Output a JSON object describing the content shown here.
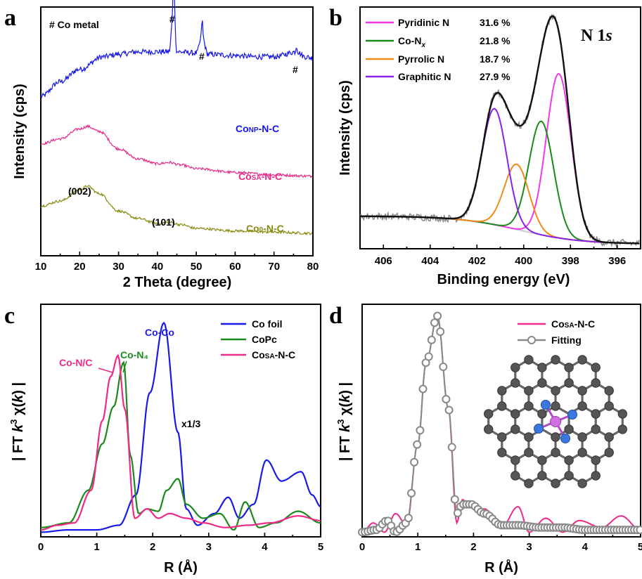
{
  "chart_data": [
    {
      "panel": "a",
      "type": "line",
      "xlabel": "2 Theta (degree)",
      "ylabel": "Intensity (cps)",
      "xlim": [
        10,
        80
      ],
      "xticks": [
        "10",
        "20",
        "30",
        "40",
        "50",
        "60",
        "70",
        "80"
      ],
      "annotations": [
        "# Co metal",
        "#",
        "#",
        "#",
        "(002)",
        "(101)"
      ],
      "series": [
        {
          "name": "CoNP-N-C",
          "color": "#1515ee",
          "x": [
            10,
            15,
            20,
            26,
            30,
            35,
            40,
            43,
            44.2,
            45,
            50,
            51.5,
            53,
            60,
            65,
            70,
            75.8,
            78,
            80
          ],
          "y": [
            0.64,
            0.7,
            0.75,
            0.8,
            0.81,
            0.82,
            0.82,
            0.82,
            1.0,
            0.82,
            0.815,
            0.88,
            0.81,
            0.805,
            0.8,
            0.8,
            0.82,
            0.8,
            0.795
          ]
        },
        {
          "name": "CoSA-N-C",
          "color": "#e8298a",
          "x": [
            10,
            15,
            20,
            22,
            25,
            30,
            35,
            40,
            43,
            46,
            50,
            60,
            70,
            80
          ],
          "y": [
            0.45,
            0.47,
            0.51,
            0.52,
            0.5,
            0.43,
            0.39,
            0.37,
            0.375,
            0.365,
            0.35,
            0.335,
            0.325,
            0.32
          ]
        },
        {
          "name": "Co0-N-C",
          "color": "#8a8a10",
          "x": [
            10,
            15,
            20,
            22,
            25,
            30,
            35,
            40,
            43,
            46,
            50,
            60,
            70,
            80
          ],
          "y": [
            0.2,
            0.22,
            0.265,
            0.28,
            0.25,
            0.18,
            0.15,
            0.13,
            0.135,
            0.125,
            0.11,
            0.1,
            0.095,
            0.09
          ]
        }
      ]
    },
    {
      "panel": "b",
      "type": "line",
      "title": "N 1s",
      "xlabel": "Binding energy (eV)",
      "ylabel": "Intensity (cps)",
      "xlim": [
        407,
        395
      ],
      "xticks": [
        "406",
        "404",
        "402",
        "400",
        "398",
        "396"
      ],
      "series": [
        {
          "name": "Pyridinic N",
          "color": "#f039ea",
          "percent": "31.6 %",
          "center": 398.5,
          "height": 0.68
        },
        {
          "name": "Co-Nx",
          "color": "#1a8a1a",
          "percent": "21.8 %",
          "center": 399.25,
          "height": 0.47
        },
        {
          "name": "Pyrrolic N",
          "color": "#f08a1a",
          "percent": "18.7 %",
          "center": 400.3,
          "height": 0.27
        },
        {
          "name": "Graphitic N",
          "color": "#8a20ea",
          "percent": "27.9 %",
          "center": 401.25,
          "height": 0.48
        }
      ]
    },
    {
      "panel": "c",
      "type": "line",
      "xlabel": "R (Å)",
      "ylabel": "| FT k3 χ(k) |",
      "xlim": [
        0,
        5
      ],
      "xticks": [
        "0",
        "1",
        "2",
        "3",
        "4",
        "5"
      ],
      "annotations": [
        "Co-Co",
        "Co-N/C",
        "Co-N₄",
        "x1/3"
      ],
      "series": [
        {
          "name": "Co foil",
          "color": "#1a1ae8",
          "x": [
            0,
            0.5,
            1.0,
            1.4,
            1.7,
            1.95,
            2.2,
            2.45,
            2.6,
            2.8,
            3.1,
            3.35,
            3.55,
            3.8,
            4.03,
            4.3,
            4.65,
            4.85,
            5.0
          ],
          "y": [
            0.02,
            0.03,
            0.03,
            0.05,
            0.18,
            0.62,
            0.92,
            0.45,
            0.12,
            0.05,
            0.1,
            0.17,
            0.08,
            0.14,
            0.33,
            0.24,
            0.28,
            0.18,
            0.13
          ]
        },
        {
          "name": "CoPc",
          "color": "#1a8a1a",
          "x": [
            0,
            0.5,
            0.85,
            1.1,
            1.3,
            1.48,
            1.6,
            1.75,
            1.9,
            2.1,
            2.25,
            2.45,
            2.6,
            2.9,
            3.2,
            3.45,
            3.65,
            3.9,
            4.2,
            4.6,
            5.0
          ],
          "y": [
            0.04,
            0.06,
            0.2,
            0.4,
            0.56,
            0.75,
            0.35,
            0.1,
            0.12,
            0.11,
            0.2,
            0.25,
            0.14,
            0.08,
            0.1,
            0.03,
            0.15,
            0.04,
            0.06,
            0.11,
            0.06
          ]
        },
        {
          "name": "CoSA-N-C",
          "color": "#ee2a88",
          "x": [
            0,
            0.3,
            0.6,
            0.9,
            1.1,
            1.25,
            1.38,
            1.5,
            1.68,
            1.9,
            2.1,
            2.3,
            2.6,
            2.9,
            3.3,
            3.7,
            4.1,
            4.6,
            5.0
          ],
          "y": [
            0.03,
            0.05,
            0.06,
            0.2,
            0.5,
            0.69,
            0.78,
            0.55,
            0.08,
            0.12,
            0.08,
            0.1,
            0.08,
            0.06,
            0.04,
            0.05,
            0.06,
            0.09,
            0.07
          ]
        }
      ]
    },
    {
      "panel": "d",
      "type": "line",
      "xlabel": "R (Å)",
      "ylabel": "| FT k3 χ(k) |",
      "xlim": [
        0,
        5
      ],
      "xticks": [
        "0",
        "1",
        "2",
        "3",
        "4",
        "5"
      ],
      "series": [
        {
          "name": "CoSA-N-C",
          "color": "#ee2a88",
          "x": [
            0,
            0.2,
            0.4,
            0.6,
            0.8,
            1.0,
            1.15,
            1.35,
            1.55,
            1.7,
            1.8,
            1.95,
            2.2,
            2.5,
            2.8,
            3.0,
            3.3,
            3.6,
            3.9,
            4.3,
            4.65,
            5.0
          ],
          "y": [
            0.02,
            0.06,
            0.02,
            0.1,
            0.05,
            0.4,
            0.75,
            0.95,
            0.55,
            0.06,
            0.16,
            0.13,
            0.12,
            0.04,
            0.13,
            0.02,
            0.08,
            0.02,
            0.07,
            0.04,
            0.09,
            0.03
          ]
        },
        {
          "name": "Fitting",
          "color": "#888888",
          "x": [
            0,
            0.25,
            0.45,
            0.6,
            0.8,
            1.0,
            1.15,
            1.35,
            1.55,
            1.7,
            1.8,
            1.95,
            2.2,
            2.5,
            2.8,
            3.2,
            3.6,
            4.0,
            4.5,
            5.0
          ],
          "y": [
            0.02,
            0.03,
            0.07,
            0.02,
            0.06,
            0.4,
            0.75,
            0.95,
            0.55,
            0.1,
            0.14,
            0.14,
            0.1,
            0.05,
            0.05,
            0.04,
            0.04,
            0.03,
            0.03,
            0.03
          ]
        }
      ]
    }
  ],
  "panel_labels": [
    "a",
    "b",
    "c",
    "d"
  ],
  "panel_a": {
    "sample_labels": {
      "np_main": "Co",
      "np_sub": "NP",
      "np_rest": "-N-C",
      "sa_main": "Co",
      "sa_sub": "SA",
      "sa_rest": "-N-C",
      "zero_main": "Co",
      "zero_sub": "0",
      "zero_rest": "-N-C"
    }
  },
  "panel_b": {
    "title_main": "N 1",
    "title_italic": "s",
    "legend_conx_main": "Co-N",
    "legend_conx_sub": "x"
  },
  "panel_c": {
    "legend_sa_main": "Co",
    "legend_sa_sub": "SA",
    "legend_sa_rest": "-N-C",
    "ylabel_a": "| FT ",
    "ylabel_k": "k",
    "ylabel_3": "3",
    "ylabel_b": " χ(",
    "ylabel_k2": "k",
    "ylabel_c": ") |"
  },
  "panel_d": {
    "legend_sa_main": "Co",
    "legend_sa_sub": "SA",
    "legend_sa_rest": "-N-C",
    "inset_icon": "molecular-structure-icon"
  }
}
